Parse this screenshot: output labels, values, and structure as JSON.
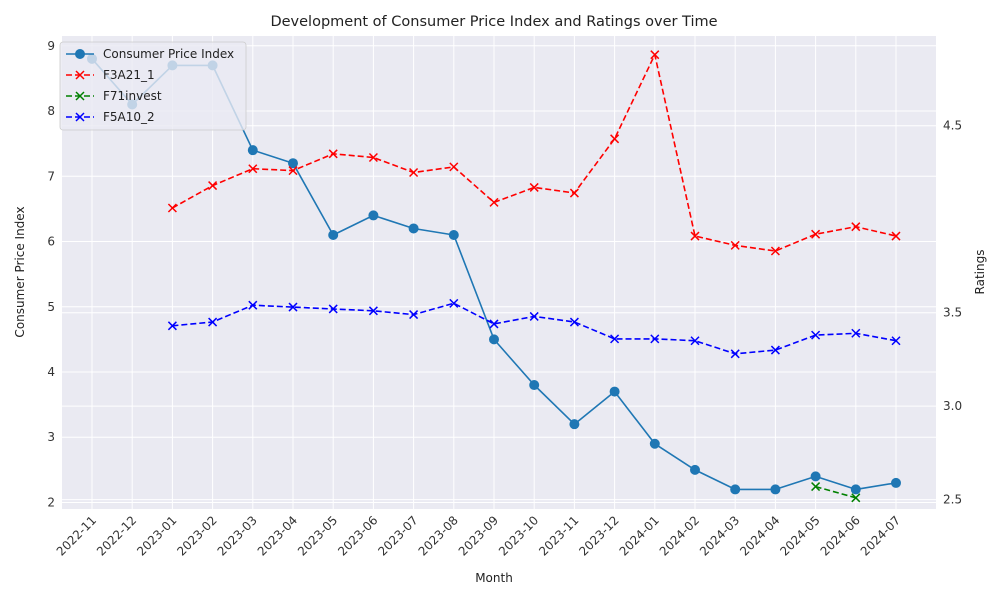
{
  "chart_data": {
    "type": "line",
    "title": "Development of Consumer Price Index and Ratings over Time",
    "xlabel": "Month",
    "ylabel_left": "Consumer Price Index",
    "ylabel_right": "Ratings",
    "categories": [
      "2022-11",
      "2022-12",
      "2023-01",
      "2023-02",
      "2023-03",
      "2023-04",
      "2023-05",
      "2023-06",
      "2023-07",
      "2023-08",
      "2023-09",
      "2023-10",
      "2023-11",
      "2023-12",
      "2024-01",
      "2024-02",
      "2024-03",
      "2024-04",
      "2024-05",
      "2024-06",
      "2024-07"
    ],
    "ylim_left": [
      1.9,
      9.15
    ],
    "yticks_left": [
      2,
      3,
      4,
      5,
      6,
      7,
      8,
      9
    ],
    "ylim_right": [
      2.45,
      4.98
    ],
    "yticks_right": [
      2.5,
      3.0,
      3.5,
      4.5
    ],
    "ytick_labels_right": [
      "2.5",
      "3.0",
      "3.5",
      "4.5"
    ],
    "grid": true,
    "legend_position": "top-left",
    "series": [
      {
        "name": "Consumer Price Index",
        "axis": "left",
        "color": "#1f77b4",
        "linestyle": "solid",
        "marker": "circle",
        "values": [
          8.8,
          8.1,
          8.7,
          8.7,
          7.4,
          7.2,
          6.1,
          6.4,
          6.2,
          6.1,
          4.5,
          3.8,
          3.2,
          3.7,
          2.9,
          2.5,
          2.2,
          2.2,
          2.4,
          2.2,
          2.3
        ]
      },
      {
        "name": "F3A21_1",
        "axis": "right",
        "color": "#ff0000",
        "linestyle": "dashed",
        "marker": "x",
        "values": [
          null,
          null,
          4.06,
          4.18,
          4.27,
          4.26,
          4.35,
          4.33,
          4.25,
          4.28,
          4.09,
          4.17,
          4.14,
          4.43,
          4.88,
          3.91,
          3.86,
          3.83,
          3.92,
          3.96,
          3.91
        ]
      },
      {
        "name": "F71invest",
        "axis": "right",
        "color": "#008000",
        "linestyle": "dashed",
        "marker": "x",
        "values": [
          null,
          null,
          null,
          null,
          null,
          null,
          null,
          null,
          null,
          null,
          null,
          null,
          null,
          null,
          null,
          null,
          null,
          null,
          2.57,
          2.51,
          null
        ]
      },
      {
        "name": "F5A10_2",
        "axis": "right",
        "color": "#0000ff",
        "linestyle": "dashed",
        "marker": "x",
        "values": [
          null,
          null,
          3.43,
          3.45,
          3.54,
          3.53,
          3.52,
          3.51,
          3.49,
          3.55,
          3.44,
          3.48,
          3.45,
          3.36,
          3.36,
          3.35,
          3.28,
          3.3,
          3.38,
          3.39,
          3.35
        ]
      }
    ]
  }
}
